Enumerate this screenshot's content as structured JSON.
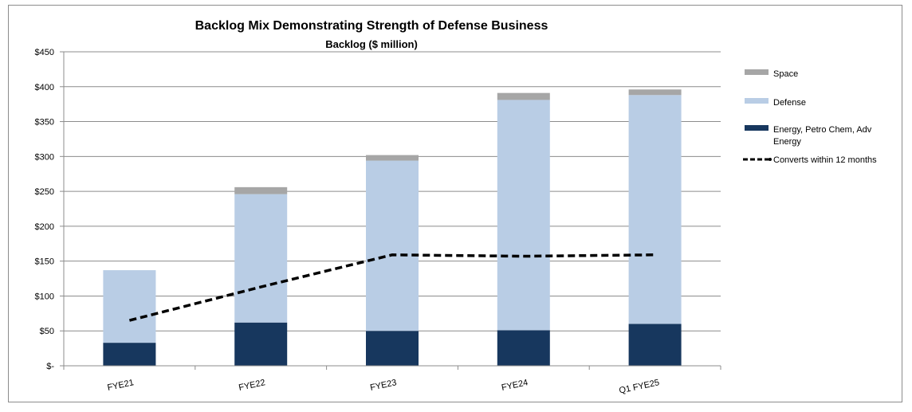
{
  "chart_data": {
    "type": "bar",
    "title": "Backlog Mix Demonstrating Strength of Defense Business",
    "subtitle": "Backlog ($ million)",
    "categories": [
      "FYE21",
      "FYE22",
      "FYE23",
      "FYE24",
      "Q1 FYE25"
    ],
    "series": [
      {
        "name": "Energy, Petro Chem, Adv Energy",
        "values": [
          33,
          62,
          50,
          51,
          60
        ],
        "color": "#17375e"
      },
      {
        "name": "Defense",
        "values": [
          104,
          184,
          244,
          330,
          328
        ],
        "color": "#b9cde5"
      },
      {
        "name": "Space",
        "values": [
          0,
          10,
          8,
          10,
          8
        ],
        "color": "#a6a6a6"
      }
    ],
    "line": {
      "name": "Converts within 12 months",
      "values": [
        65,
        113,
        159,
        157,
        159
      ],
      "color": "#000000",
      "style": "dashed"
    },
    "ylim": [
      0,
      450
    ],
    "yticks": [
      0,
      50,
      100,
      150,
      200,
      250,
      300,
      350,
      400,
      450
    ],
    "ytick_labels": [
      "$-",
      "$50",
      "$100",
      "$150",
      "$200",
      "$250",
      "$300",
      "$350",
      "$400",
      "$450"
    ],
    "grid": true,
    "legend": {
      "position": "right",
      "items": [
        {
          "label": "Space",
          "color": "#a6a6a6",
          "kind": "box"
        },
        {
          "label": "Defense",
          "color": "#b9cde5",
          "kind": "box"
        },
        {
          "label_lines": [
            "Energy, Petro Chem, Adv",
            "Energy"
          ],
          "color": "#17375e",
          "kind": "box"
        },
        {
          "label": "Converts within 12 months",
          "color": "#000000",
          "kind": "line"
        }
      ]
    }
  }
}
